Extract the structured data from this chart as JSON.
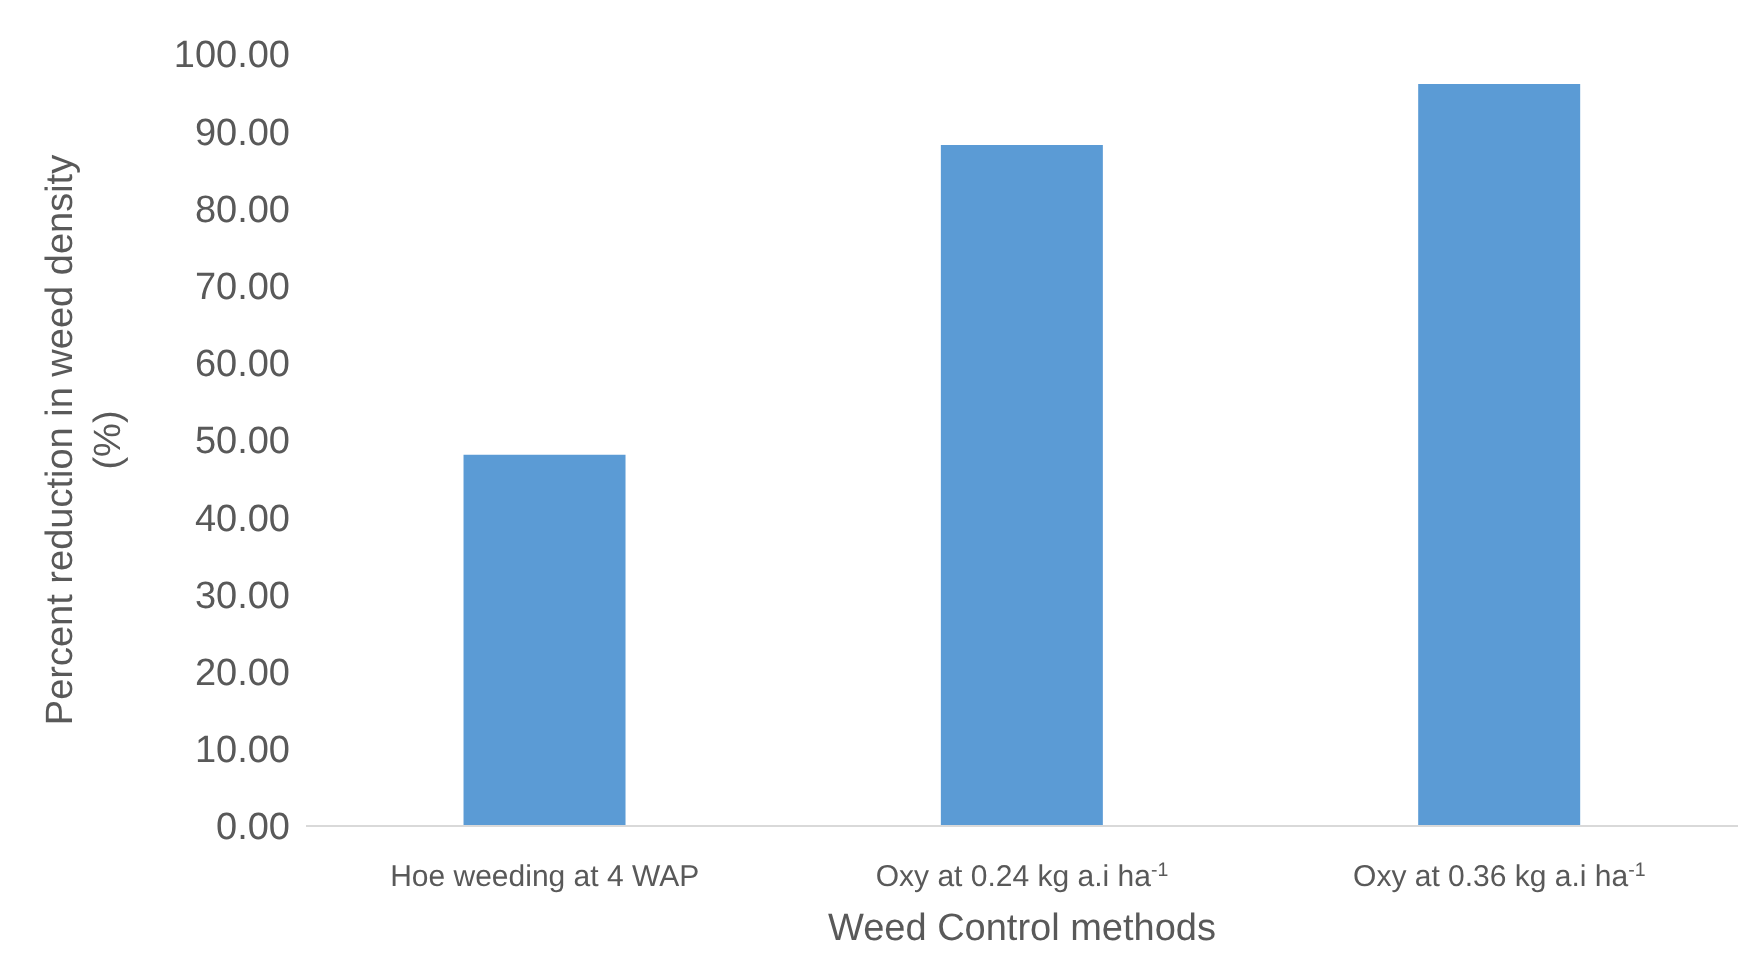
{
  "chart_data": {
    "type": "bar",
    "xlabel": "Weed Control methods",
    "ylabel": "Percent reduction in weed density (%)",
    "categories": [
      "Hoe weeding at 4 WAP",
      "Oxy at 0.24 kg a.i ha$^{-1}$",
      "Oxy at 0.36 kg a.i ha$^{-1}$"
    ],
    "values": [
      48.1,
      88.2,
      96.1
    ],
    "color": "#5b9bd5",
    "ylim": [
      0,
      100
    ],
    "yticks": [
      {
        "value": 0,
        "label": "0.00"
      },
      {
        "value": 10,
        "label": "10.00"
      },
      {
        "value": 20,
        "label": "20.00"
      },
      {
        "value": 30,
        "label": "30.00"
      },
      {
        "value": 40,
        "label": "40.00"
      },
      {
        "value": 50,
        "label": "50.00"
      },
      {
        "value": 60,
        "label": "60.00"
      },
      {
        "value": 70,
        "label": "70.00"
      },
      {
        "value": 80,
        "label": "80.00"
      },
      {
        "value": 90,
        "label": "90.00"
      },
      {
        "value": 100,
        "label": "100.00"
      }
    ],
    "grid": false,
    "legend": false
  }
}
